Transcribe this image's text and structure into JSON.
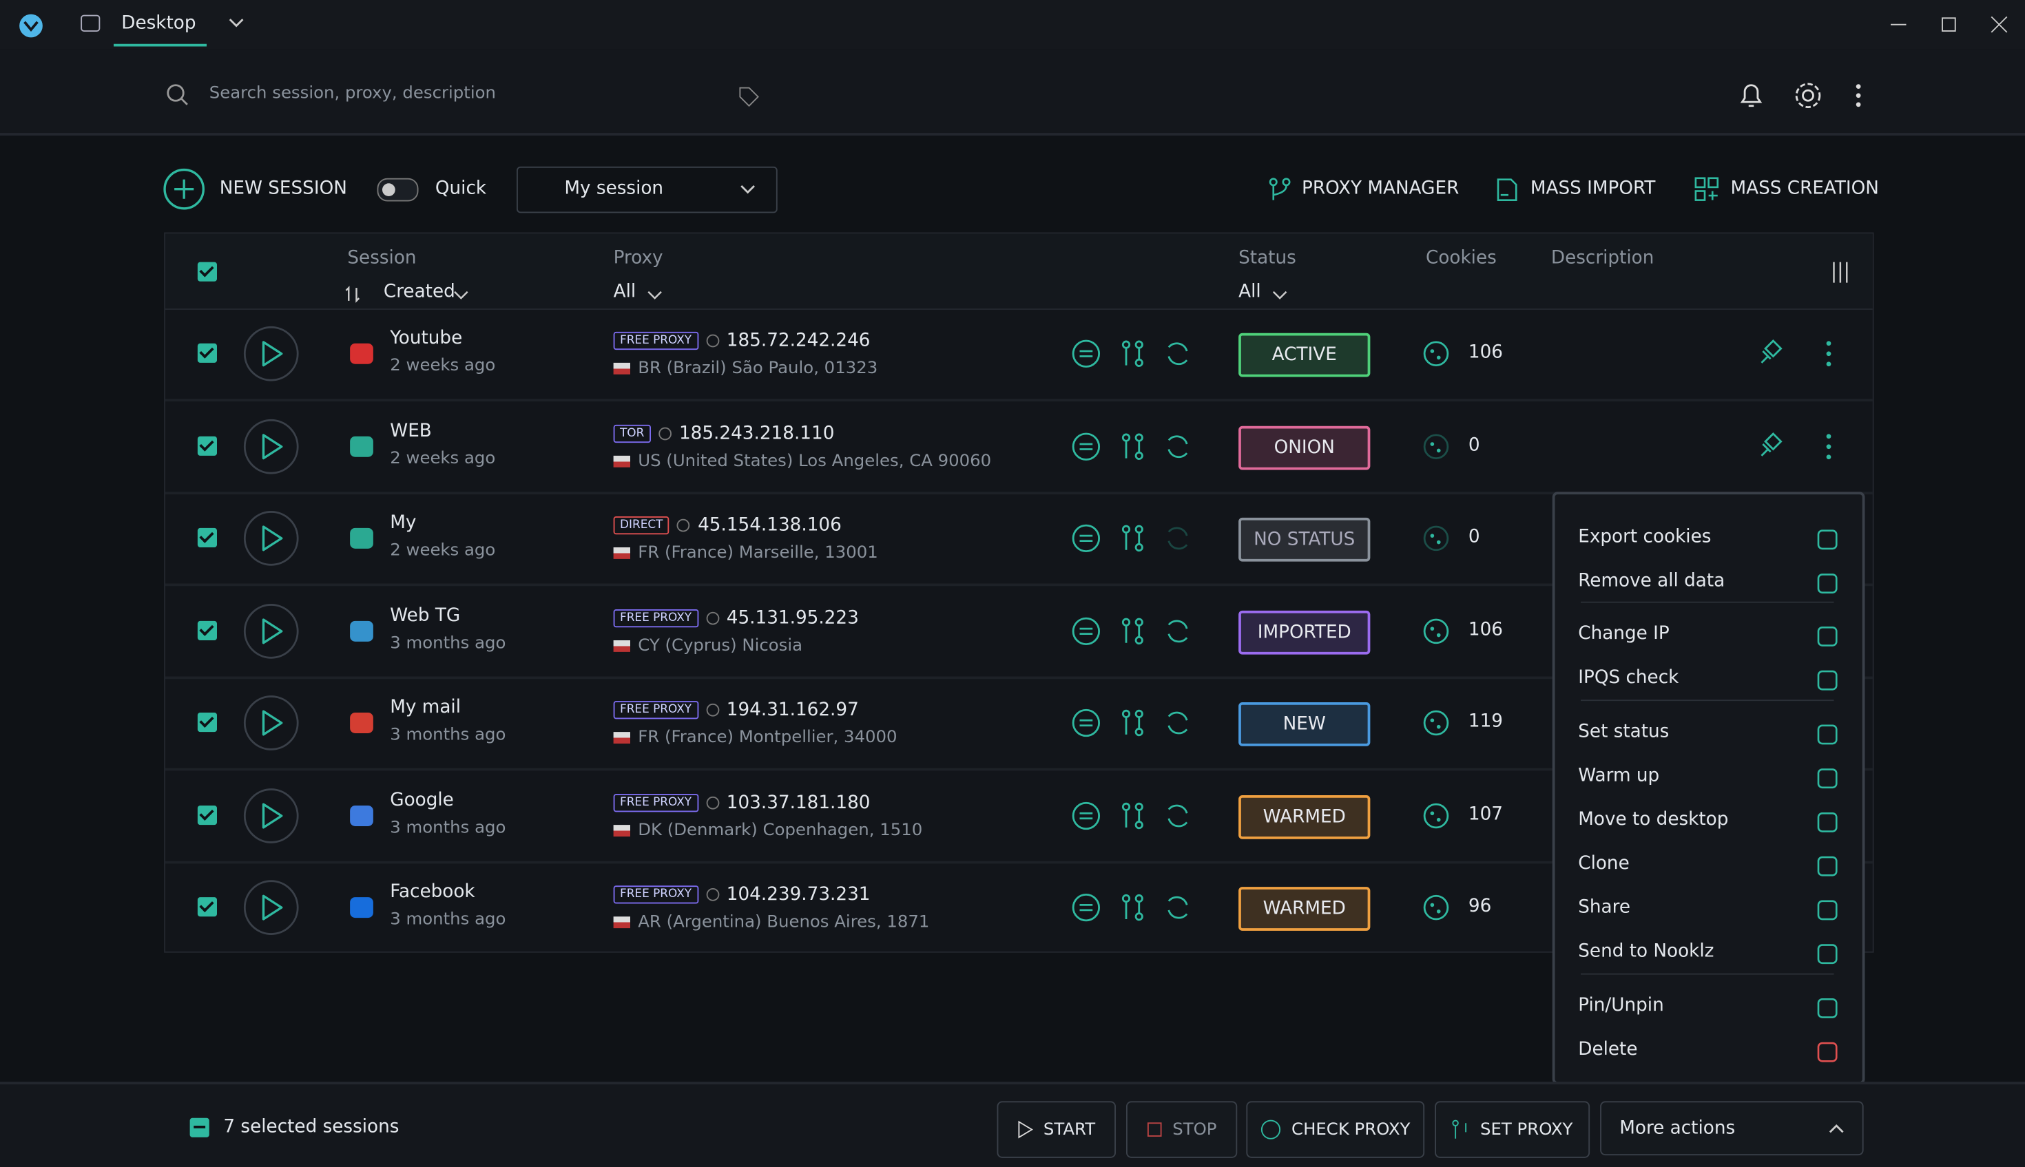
{
  "window": {
    "desktop": "Desktop"
  },
  "search": {
    "placeholder": "Search session, proxy, description"
  },
  "toolbar": {
    "new_session": "NEW SESSION",
    "quick": "Quick",
    "session_select": "My session",
    "proxy_manager": "PROXY MANAGER",
    "mass_import": "MASS IMPORT",
    "mass_creation": "MASS CREATION"
  },
  "table": {
    "headers": {
      "session": "Session",
      "sort": "Created",
      "proxy": "Proxy",
      "proxy_filter": "All",
      "status": "Status",
      "status_filter": "All",
      "cookies": "Cookies",
      "description": "Description"
    },
    "rows": [
      {
        "name": "Youtube",
        "created": "2 weeks ago",
        "proxy_type": "FREE PROXY",
        "ip": "185.72.242.246",
        "location": "BR (Brazil) São Paulo, 01323",
        "status": "ACTIVE",
        "status_color": "#4fd17a",
        "cookies": 106
      },
      {
        "name": "WEB",
        "created": "2 weeks ago",
        "proxy_type": "TOR",
        "ip": "185.243.218.110",
        "location": "US (United States) Los Angeles, CA 90060",
        "status": "ONION",
        "status_color": "#e06a9a",
        "cookies": 0
      },
      {
        "name": "My",
        "created": "2 weeks ago",
        "proxy_type": "DIRECT",
        "ip": "45.154.138.106",
        "location": "FR (France) Marseille, 13001",
        "status": "NO STATUS",
        "status_color": "#8a929c",
        "cookies": 0
      },
      {
        "name": "Web TG",
        "created": "3 months ago",
        "proxy_type": "FREE PROXY",
        "ip": "45.131.95.223",
        "location": "CY (Cyprus) Nicosia",
        "status": "IMPORTED",
        "status_color": "#9b6cf0",
        "cookies": 106
      },
      {
        "name": "My mail",
        "created": "3 months ago",
        "proxy_type": "FREE PROXY",
        "ip": "194.31.162.97",
        "location": "FR (France) Montpellier, 34000",
        "status": "NEW",
        "status_color": "#4a9ae0",
        "cookies": 119
      },
      {
        "name": "Google",
        "created": "3 months ago",
        "proxy_type": "FREE PROXY",
        "ip": "103.37.181.180",
        "location": "DK (Denmark) Copenhagen, 1510",
        "status": "WARMED",
        "status_color": "#f0a040",
        "cookies": 107
      },
      {
        "name": "Facebook",
        "created": "3 months ago",
        "proxy_type": "FREE PROXY",
        "ip": "104.239.73.231",
        "location": "AR (Argentina) Buenos Aires, 1871",
        "status": "WARMED",
        "status_color": "#f0a040",
        "cookies": 96
      }
    ]
  },
  "context_menu": [
    "Export cookies",
    "Remove all data",
    "Change IP",
    "IPQS check",
    "Set status",
    "Warm up",
    "Move to desktop",
    "Clone",
    "Share",
    "Send to Nooklz",
    "Pin/Unpin",
    "Delete"
  ],
  "footer": {
    "selected": "7 selected sessions",
    "start": "START",
    "stop": "STOP",
    "check_proxy": "CHECK PROXY",
    "set_proxy": "SET PROXY",
    "more": "More actions"
  }
}
